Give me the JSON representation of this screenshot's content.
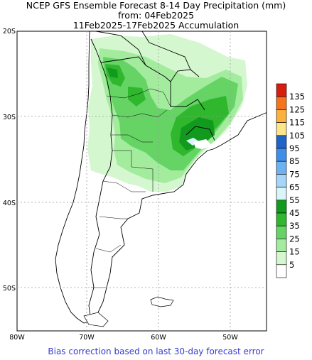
{
  "title": {
    "line1": "NCEP GFS Ensemble Forecast 8-14 Day Precipitation (mm)",
    "line2": "from: 04Feb2025",
    "line3": "11Feb2025-17Feb2025 Accumulation"
  },
  "footer": "Bias correction based on last 30-day forecast error",
  "axes": {
    "lat_labels": [
      "20S",
      "30S",
      "40S",
      "50S"
    ],
    "lon_labels": [
      "80W",
      "70W",
      "60W",
      "50W"
    ]
  },
  "colorbar": {
    "levels": [
      "135",
      "125",
      "115",
      "105",
      "95",
      "85",
      "75",
      "65",
      "55",
      "45",
      "35",
      "25",
      "15",
      "5"
    ],
    "colors": [
      "#d61d0e",
      "#f5741e",
      "#fbb13c",
      "#fde58a",
      "#1f64c8",
      "#3e8fe9",
      "#6cb2f2",
      "#a5d6f7",
      "#d9f5f9",
      "#129a1e",
      "#2fb72e",
      "#65d465",
      "#a3ec9e",
      "#d4f7cf",
      "#ffffff"
    ]
  }
}
